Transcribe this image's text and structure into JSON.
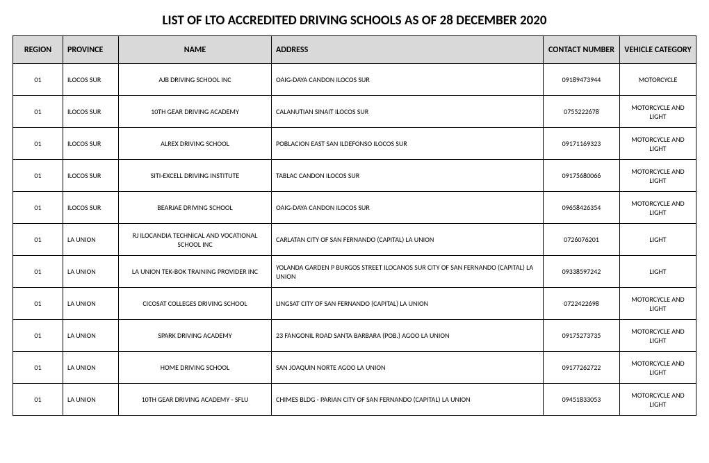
{
  "title": "LIST OF LTO ACCREDITED DRIVING SCHOOLS AS OF 28 DECEMBER 2020",
  "table": {
    "columns": [
      "REGION",
      "PROVINCE",
      "NAME",
      "ADDRESS",
      "CONTACT NUMBER",
      "VEHICLE CATEGORY"
    ],
    "header_bg": "#d9d9d9",
    "border_color": "#000000",
    "rows": [
      {
        "region": "01",
        "province": "ILOCOS SUR",
        "name": "AJB DRIVING SCHOOL INC",
        "address": "OAIG-DAYA CANDON ILOCOS SUR",
        "contact": "09189473944",
        "category": "MOTORCYCLE"
      },
      {
        "region": "01",
        "province": "ILOCOS SUR",
        "name": "10TH GEAR DRIVING ACADEMY",
        "address": "CALANUTIAN SINAIT ILOCOS SUR",
        "contact": "0755222678",
        "category": "MOTORCYCLE AND LIGHT"
      },
      {
        "region": "01",
        "province": "ILOCOS SUR",
        "name": "ALREX DRIVING SCHOOL",
        "address": "POBLACION EAST SAN ILDEFONSO ILOCOS SUR",
        "contact": "09171169323",
        "category": "MOTORCYCLE AND LIGHT"
      },
      {
        "region": "01",
        "province": "ILOCOS SUR",
        "name": "SITI-EXCELL DRIVING INSTITUTE",
        "address": "TABLAC CANDON ILOCOS SUR",
        "contact": "09175680066",
        "category": "MOTORCYCLE AND LIGHT"
      },
      {
        "region": "01",
        "province": "ILOCOS SUR",
        "name": "BEARJAE DRIVING SCHOOL",
        "address": "OAIG-DAYA CANDON ILOCOS SUR",
        "contact": "09658426354",
        "category": "MOTORCYCLE AND LIGHT"
      },
      {
        "region": "01",
        "province": "LA UNION",
        "name": "RJ ILOCANDIA TECHNICAL AND VOCATIONAL SCHOOL INC",
        "address": "CARLATAN CITY OF SAN FERNANDO (CAPITAL) LA UNION",
        "contact": "0726076201",
        "category": "LIGHT"
      },
      {
        "region": "01",
        "province": "LA UNION",
        "name": "LA UNION TEK-BOK TRAINING PROVIDER INC",
        "address": "YOLANDA GARDEN P BURGOS STREET ILOCANOS SUR CITY OF SAN FERNANDO (CAPITAL) LA UNION",
        "contact": "09338597242",
        "category": "LIGHT"
      },
      {
        "region": "01",
        "province": "LA UNION",
        "name": "CICOSAT COLLEGES DRIVING SCHOOL",
        "address": "LINGSAT CITY OF SAN FERNANDO (CAPITAL) LA UNION",
        "contact": "0722422698",
        "category": "MOTORCYCLE AND LIGHT"
      },
      {
        "region": "01",
        "province": "LA UNION",
        "name": "SPARK DRIVING ACADEMY",
        "address": "23 FANGONIL ROAD SANTA BARBARA (POB.) AGOO LA UNION",
        "contact": "09175273735",
        "category": "MOTORCYCLE AND LIGHT"
      },
      {
        "region": "01",
        "province": "LA UNION",
        "name": "HOME DRIVING SCHOOL",
        "address": "SAN JOAQUIN NORTE AGOO LA UNION",
        "contact": "09177262722",
        "category": "MOTORCYCLE AND LIGHT"
      },
      {
        "region": "01",
        "province": "LA UNION",
        "name": "10TH GEAR DRIVING ACADEMY - SFLU",
        "address": "CHIMES BLDG - PARIAN CITY OF SAN FERNANDO (CAPITAL) LA UNION",
        "contact": "09451833053",
        "category": "MOTORCYCLE AND LIGHT"
      }
    ]
  }
}
